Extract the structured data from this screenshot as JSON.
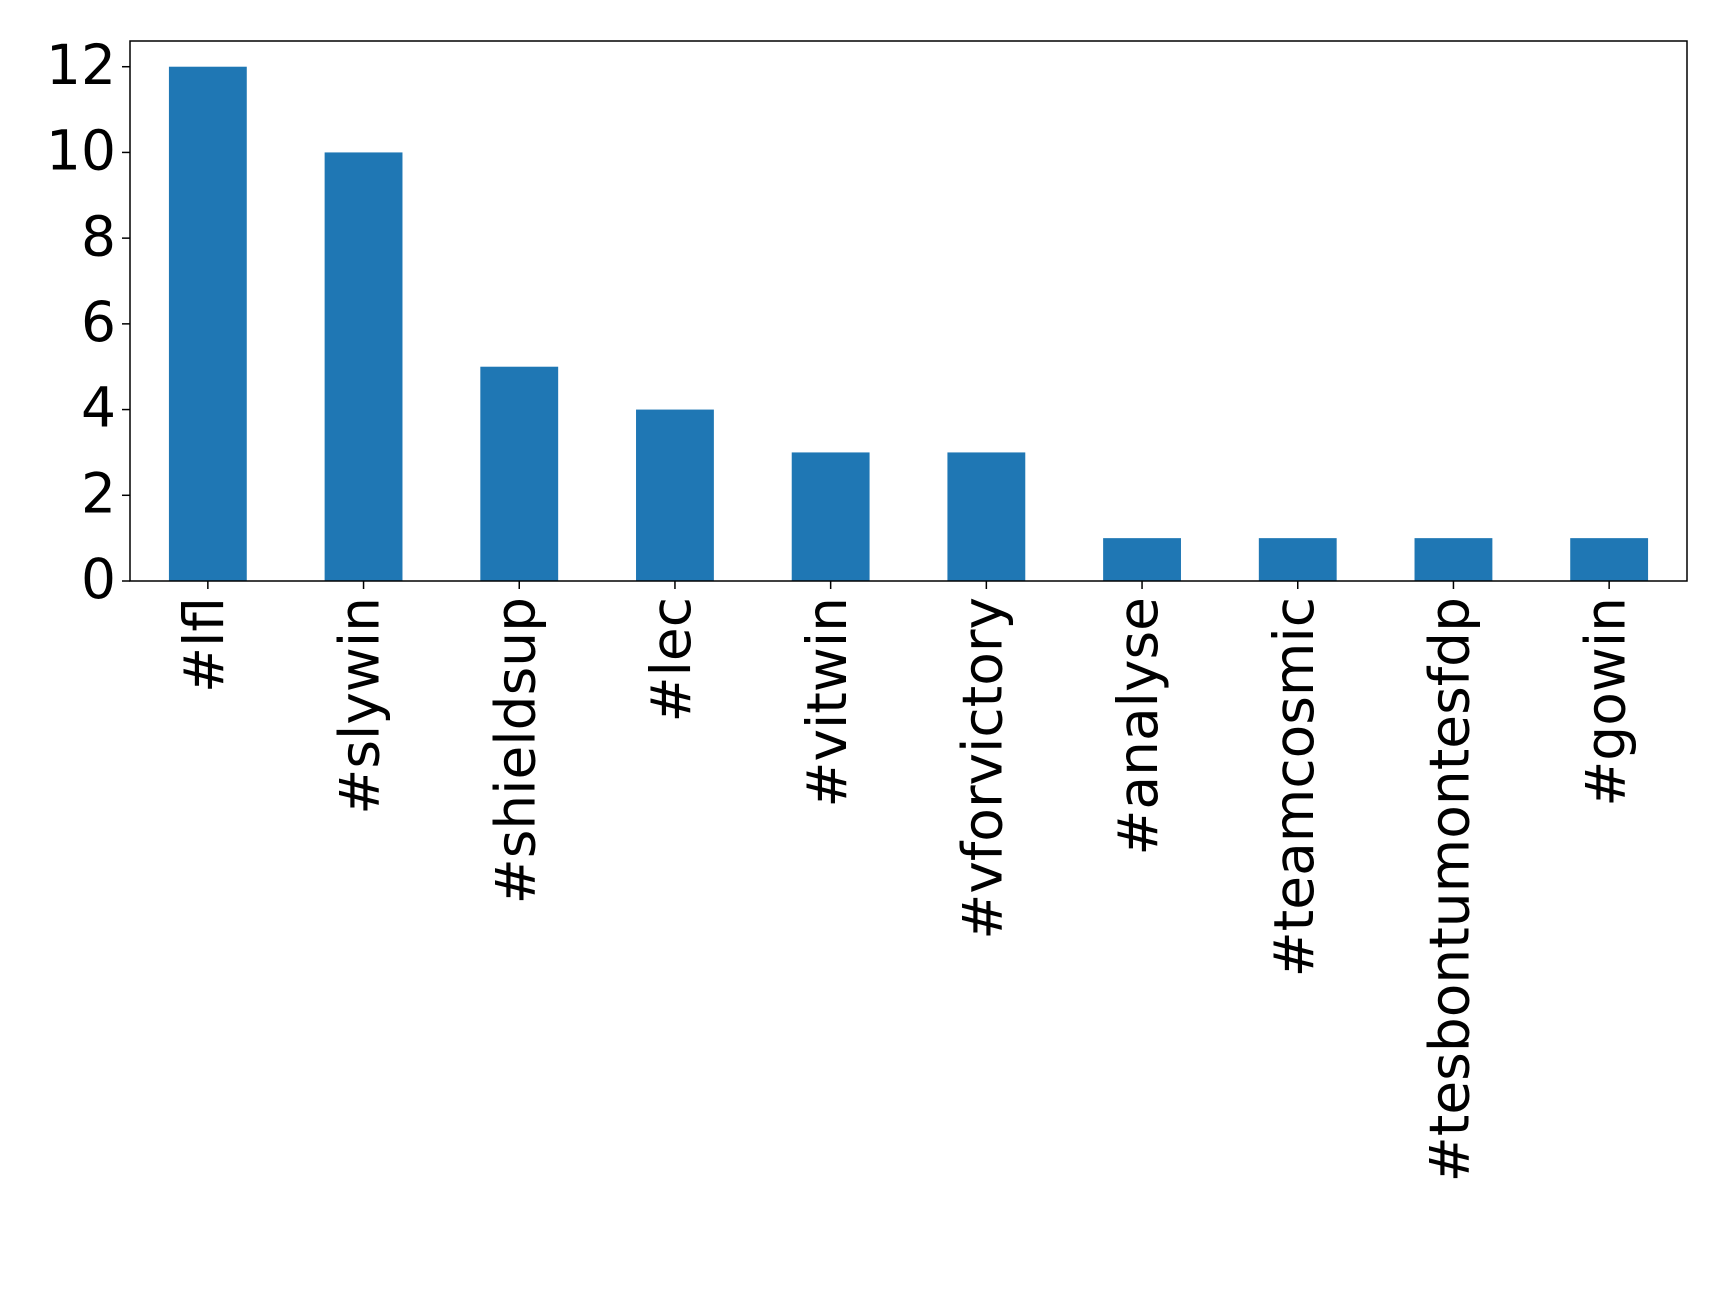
{
  "chart_data": {
    "type": "bar",
    "categories": [
      "#lfl",
      "#slywin",
      "#shieldsup",
      "#lec",
      "#vitwin",
      "#vforvictory",
      "#analyse",
      "#teamcosmic",
      "#tesbontumontesfdp",
      "#gowin"
    ],
    "values": [
      12,
      10,
      5,
      4,
      3,
      3,
      1,
      1,
      1,
      1
    ],
    "color": "#1f77b4",
    "ylim": [
      0,
      12.6
    ],
    "yticks": [
      0,
      2,
      4,
      6,
      8,
      10,
      12
    ],
    "grid": false
  }
}
